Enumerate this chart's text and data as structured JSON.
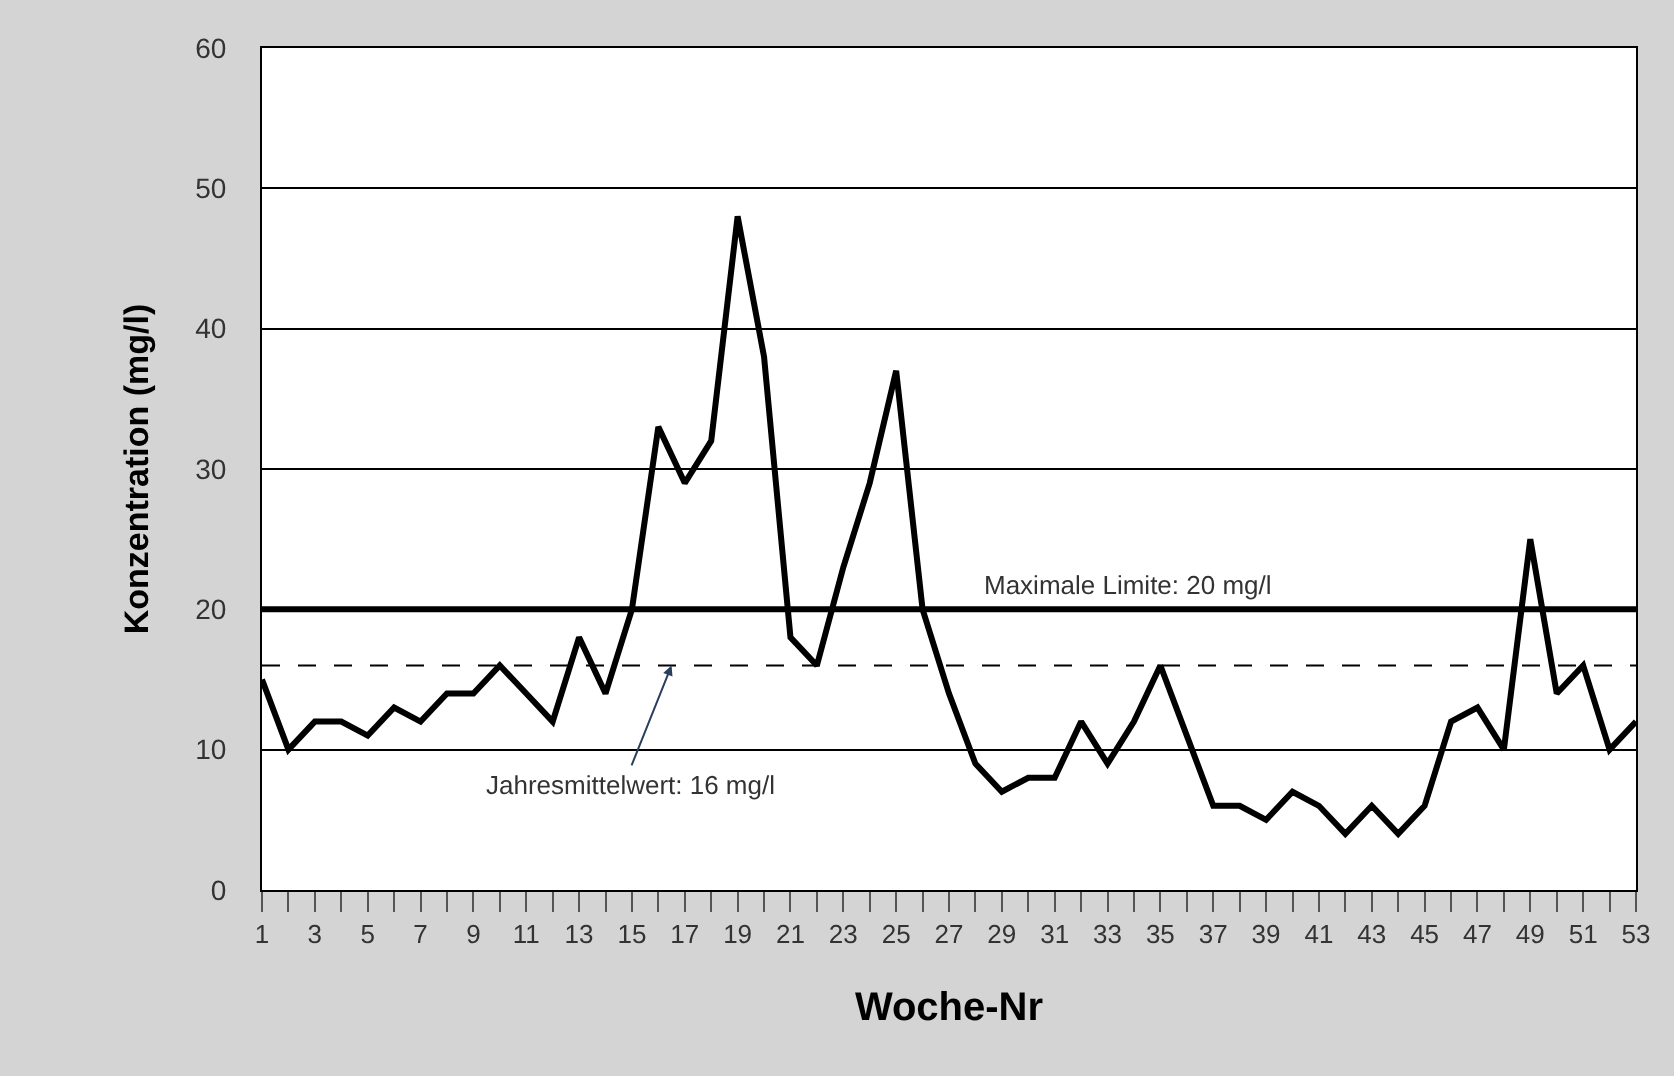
{
  "chart_data": {
    "type": "line",
    "xlabel": "Woche-Nr",
    "ylabel": "Konzentration (mg/l)",
    "x": [
      1,
      2,
      3,
      4,
      5,
      6,
      7,
      8,
      9,
      10,
      11,
      12,
      13,
      14,
      15,
      16,
      17,
      18,
      19,
      20,
      21,
      22,
      23,
      24,
      25,
      26,
      27,
      28,
      29,
      30,
      31,
      32,
      33,
      34,
      35,
      36,
      37,
      38,
      39,
      40,
      41,
      42,
      43,
      44,
      45,
      46,
      47,
      48,
      49,
      50,
      51,
      52,
      53
    ],
    "series": [
      {
        "color": "#000000",
        "values": [
          15,
          10,
          12,
          12,
          11,
          13,
          12,
          14,
          14,
          16,
          14,
          12,
          18,
          14,
          20,
          33,
          29,
          32,
          48,
          38,
          18,
          16,
          23,
          29,
          37,
          20,
          14,
          9,
          7,
          8,
          8,
          12,
          9,
          12,
          16,
          11,
          6,
          6,
          5,
          7,
          6,
          4,
          6,
          4,
          6,
          12,
          13,
          10,
          25,
          14,
          16,
          10,
          12
        ]
      }
    ],
    "xlim": [
      1,
      53
    ],
    "ylim": [
      0,
      60
    ],
    "yticks": [
      0,
      10,
      20,
      30,
      40,
      50,
      60
    ],
    "xticks": [
      1,
      {
        "value": 2,
        "label": null
      },
      3,
      {
        "value": 4,
        "label": null
      },
      5,
      {
        "value": 6,
        "label": null
      },
      7,
      {
        "value": 8,
        "label": null
      },
      9,
      {
        "value": 10,
        "label": null
      },
      11,
      {
        "value": 12,
        "label": null
      },
      13,
      {
        "value": 14,
        "label": null
      },
      15,
      {
        "value": 16,
        "label": null
      },
      17,
      {
        "value": 18,
        "label": null
      },
      19,
      {
        "value": 20,
        "label": null
      },
      21,
      {
        "value": 22,
        "label": null
      },
      23,
      {
        "value": 24,
        "label": null
      },
      25,
      {
        "value": 26,
        "label": null
      },
      27,
      {
        "value": 28,
        "label": null
      },
      29,
      {
        "value": 30,
        "label": null
      },
      31,
      {
        "value": 32,
        "label": null
      },
      33,
      {
        "value": 34,
        "label": null
      },
      35,
      {
        "value": 36,
        "label": null
      },
      37,
      {
        "value": 38,
        "label": null
      },
      39,
      {
        "value": 40,
        "label": null
      },
      41,
      {
        "value": 42,
        "label": null
      },
      43,
      {
        "value": 44,
        "label": null
      },
      45,
      {
        "value": 46,
        "label": null
      },
      47,
      {
        "value": 48,
        "label": null
      },
      49,
      {
        "value": 50,
        "label": null
      },
      51,
      {
        "value": 52,
        "label": null
      },
      53
    ],
    "ref_lines": [
      {
        "axis": "y",
        "value": 20,
        "label": "Maximale Limite: 20 mg/l",
        "color": "#000000",
        "line_style": "solid"
      },
      {
        "axis": "y",
        "value": 16,
        "color": "#000000",
        "line_style": "dashed"
      }
    ],
    "annotations": [
      {
        "text": "Jahresmittelwert: 16 mg/l",
        "x": 16.5,
        "y": 16
      }
    ],
    "grid": "y",
    "marker": "none",
    "line_style": "solid"
  }
}
